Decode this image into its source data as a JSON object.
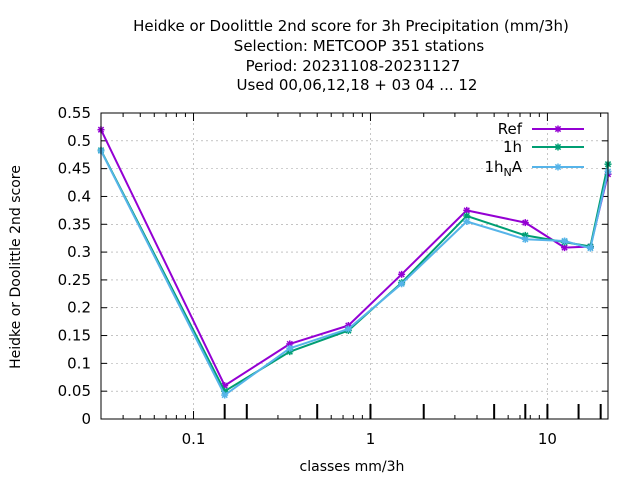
{
  "chart_data": {
    "type": "line",
    "title_lines": [
      "Heidke or Doolittle 2nd score  for 3h Precipitation (mm/3h)",
      "Selection: METCOOP    351 stations",
      "Period: 20231108-20231127",
      "Used  00,06,12,18 + 03 04 ... 12"
    ],
    "xlabel": "classes mm/3h",
    "ylabel": "Heidke or Doolittle 2nd score",
    "x_scale": "log",
    "xlim": [
      0.03,
      22
    ],
    "ylim": [
      0,
      0.55
    ],
    "x_tick_labels": [
      {
        "value": 0.1,
        "label": "0.1"
      },
      {
        "value": 1,
        "label": "1"
      },
      {
        "value": 10,
        "label": "10"
      }
    ],
    "y_ticks": [
      0,
      0.05,
      0.1,
      0.15,
      0.2,
      0.25,
      0.3,
      0.35,
      0.4,
      0.45,
      0.5,
      0.55
    ],
    "y_tick_labels": [
      "0",
      "0.05",
      "0.1",
      "0.15",
      "0.2",
      "0.25",
      "0.3",
      "0.35",
      "0.4",
      "0.45",
      "0.5",
      "0.55"
    ],
    "x_class_ticks": [
      0.15,
      0.2,
      0.5,
      1.0,
      2.0,
      5.0,
      7.5,
      10,
      15,
      20
    ],
    "grid": true,
    "legend_position": "top-right",
    "series": [
      {
        "name": "Ref",
        "name_sub": "",
        "name_tail": "",
        "color": "#9400d3",
        "x": [
          0.03,
          0.15,
          0.35,
          0.75,
          1.5,
          3.5,
          7.5,
          12.5,
          17.5,
          22
        ],
        "y": [
          0.52,
          0.06,
          0.135,
          0.168,
          0.26,
          0.375,
          0.353,
          0.308,
          0.31,
          0.44
        ]
      },
      {
        "name": "1h",
        "name_sub": "",
        "name_tail": "",
        "color": "#009e73",
        "x": [
          0.03,
          0.15,
          0.35,
          0.75,
          1.5,
          3.5,
          7.5,
          12.5,
          17.5,
          22
        ],
        "y": [
          0.483,
          0.05,
          0.121,
          0.159,
          0.245,
          0.365,
          0.33,
          0.318,
          0.31,
          0.458
        ]
      },
      {
        "name": "1h",
        "name_sub": "N",
        "name_tail": "A",
        "color": "#56b4e9",
        "x": [
          0.03,
          0.15,
          0.35,
          0.75,
          1.5,
          3.5,
          7.5,
          12.5,
          17.5,
          22
        ],
        "y": [
          0.482,
          0.043,
          0.127,
          0.162,
          0.243,
          0.355,
          0.323,
          0.32,
          0.307,
          0.445
        ]
      }
    ]
  }
}
